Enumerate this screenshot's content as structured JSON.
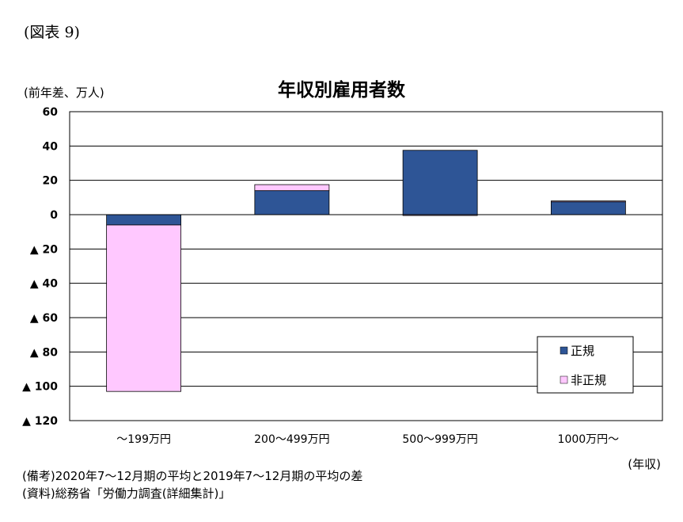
{
  "figure_label": "(図表 9)",
  "unit_label": "(前年差、万人)",
  "x_unit_label": "(年収)",
  "notes": {
    "remarks": "(備考)2020年7〜12月期の平均と2019年7〜12月期の平均の差",
    "source": "(資料)総務省「労働力調査(詳細集計)」"
  },
  "colors": {
    "regular": "#2e5596",
    "non_regular": "#ffc8ff",
    "grid": "#000000"
  },
  "chart_data": {
    "type": "bar",
    "stacked": true,
    "title": "年収別雇用者数",
    "xlabel": "",
    "ylabel": "",
    "ylim": [
      -120,
      60
    ],
    "yticks": [
      60,
      40,
      20,
      0,
      -20,
      -40,
      -60,
      -80,
      -100,
      -120
    ],
    "ytick_labels": [
      "60",
      "40",
      "20",
      "0",
      "▲ 20",
      "▲ 40",
      "▲ 60",
      "▲ 80",
      "▲ 100",
      "▲ 120"
    ],
    "grid": true,
    "legend_position": "bottom-right",
    "categories": [
      "〜199万円",
      "200〜499万円",
      "500〜999万円",
      "1000万円〜"
    ],
    "series": [
      {
        "name": "正規",
        "values": [
          -6,
          14,
          37.5,
          7.5
        ]
      },
      {
        "name": "非正規",
        "values": [
          -97,
          3.5,
          -0.5,
          0.5
        ]
      }
    ]
  }
}
